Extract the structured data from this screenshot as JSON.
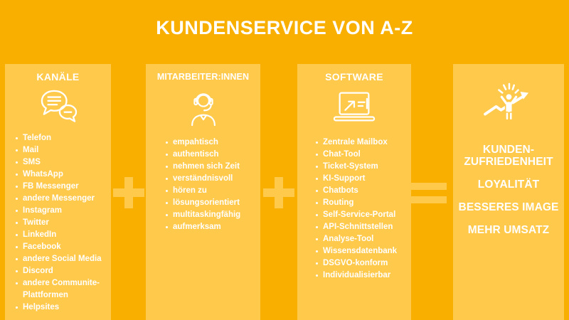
{
  "page": {
    "title": "KUNDENSERVICE VON A-Z",
    "background_color": "#F8AF00",
    "panel_color": "#FFC94C",
    "text_color": "#FFFFFF"
  },
  "columns": [
    {
      "header": "KANÄLE",
      "icon": "chat-bubbles-icon",
      "items": [
        "Telefon",
        "Mail",
        "SMS",
        "WhatsApp",
        "FB Messenger",
        "andere Messenger",
        "Instagram",
        "Twitter",
        "LinkedIn",
        "Facebook",
        "andere Social Media",
        "Discord",
        "andere Communite-Plattformen",
        "Helpsites"
      ]
    },
    {
      "header": "MITARBEITER:INNEN",
      "icon": "support-agent-headset-icon",
      "items": [
        "empahtisch",
        "authentisch",
        "nehmen sich Zeit",
        "verständnisvoll",
        "hören zu",
        "lösungsorientiert",
        "multitaskingfähig",
        "aufmerksam"
      ]
    },
    {
      "header": "SOFTWARE",
      "icon": "laptop-icon",
      "items": [
        "Zentrale Mailbox",
        "Chat-Tool",
        "Ticket-System",
        "KI-Support",
        "Chatbots",
        "Routing",
        "Self-Service-Portal",
        "API-Schnittstellen",
        "Analyse-Tool",
        "Wissensdatenbank",
        "DSGVO-konform",
        "Individualisierbar"
      ]
    }
  ],
  "operators": [
    "+",
    "+",
    "="
  ],
  "results": {
    "icon": "success-person-icon",
    "items": [
      "KUNDEN-ZUFRIEDENHEIT",
      "LOYALITÄT",
      "BESSERES IMAGE",
      "MEHR UMSATZ"
    ]
  }
}
